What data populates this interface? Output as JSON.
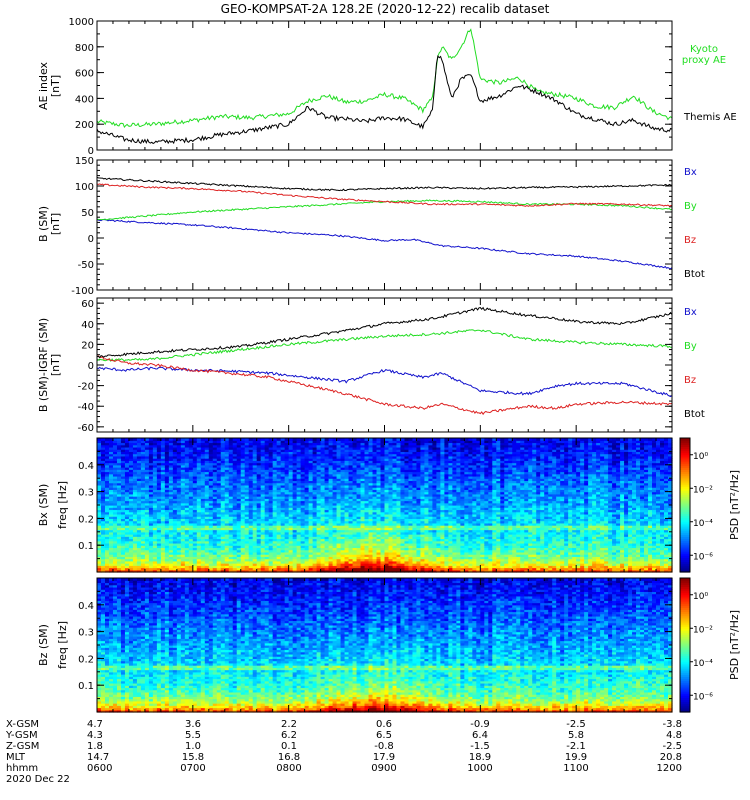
{
  "title": "GEO-KOMPSAT-2A 128.2E (2020-12-22) recalib dataset",
  "colors": {
    "black": "#000000",
    "green": "#22dd22",
    "red": "#dd2222",
    "blue": "#1111cc"
  },
  "chart_data": [
    {
      "type": "line",
      "panel": "ae",
      "ylabel": "AE index",
      "yunit": "[nT]",
      "ylim": [
        0,
        1000
      ],
      "yticks": [
        0,
        200,
        400,
        600,
        800,
        1000
      ],
      "x_range_hours": [
        6,
        12
      ],
      "series": [
        {
          "name": "Kyoto proxy AE",
          "color": "#22dd22",
          "label_lines": [
            "Kyoto",
            "proxy AE"
          ],
          "x": [
            6.0,
            6.3,
            6.6,
            7.0,
            7.3,
            7.6,
            8.0,
            8.2,
            8.4,
            8.6,
            8.8,
            9.0,
            9.2,
            9.4,
            9.5,
            9.55,
            9.6,
            9.7,
            9.8,
            9.9,
            10.0,
            10.2,
            10.4,
            10.6,
            10.8,
            11.0,
            11.2,
            11.4,
            11.6,
            11.8,
            12.0
          ],
          "y": [
            220,
            190,
            200,
            230,
            260,
            250,
            280,
            380,
            420,
            370,
            380,
            430,
            400,
            310,
            400,
            700,
            800,
            700,
            800,
            950,
            550,
            520,
            560,
            450,
            430,
            400,
            340,
            330,
            420,
            300,
            240
          ]
        },
        {
          "name": "Themis AE",
          "color": "#000000",
          "label_lines": [
            "Themis AE"
          ],
          "x": [
            6.0,
            6.3,
            6.6,
            7.0,
            7.3,
            7.6,
            8.0,
            8.2,
            8.4,
            8.6,
            8.8,
            9.0,
            9.2,
            9.4,
            9.5,
            9.55,
            9.6,
            9.7,
            9.8,
            9.9,
            10.0,
            10.2,
            10.4,
            10.6,
            10.8,
            11.0,
            11.2,
            11.4,
            11.6,
            11.8,
            12.0
          ],
          "y": [
            150,
            80,
            60,
            80,
            120,
            150,
            200,
            330,
            250,
            240,
            220,
            250,
            240,
            180,
            300,
            750,
            700,
            400,
            550,
            580,
            380,
            420,
            500,
            450,
            380,
            280,
            240,
            200,
            230,
            170,
            150
          ]
        }
      ]
    },
    {
      "type": "line",
      "panel": "b_sm",
      "ylabel": "B (SM)",
      "yunit": "[nT]",
      "ylim": [
        -100,
        150
      ],
      "yticks": [
        -100,
        -50,
        0,
        50,
        100,
        150
      ],
      "x_range_hours": [
        6,
        12
      ],
      "series": [
        {
          "name": "Bx",
          "color": "#1111cc",
          "x": [
            6.0,
            6.5,
            7.0,
            7.5,
            8.0,
            8.5,
            9.0,
            9.3,
            9.6,
            10.0,
            10.5,
            11.0,
            11.5,
            12.0
          ],
          "y": [
            35,
            30,
            25,
            18,
            10,
            5,
            -5,
            -3,
            -15,
            -20,
            -30,
            -35,
            -45,
            -58
          ]
        },
        {
          "name": "By",
          "color": "#22dd22",
          "x": [
            6.0,
            6.5,
            7.0,
            7.5,
            8.0,
            8.5,
            9.0,
            9.5,
            10.0,
            10.5,
            11.0,
            11.5,
            12.0
          ],
          "y": [
            35,
            42,
            50,
            55,
            60,
            65,
            70,
            72,
            70,
            65,
            65,
            62,
            55
          ]
        },
        {
          "name": "Bz",
          "color": "#dd2222",
          "x": [
            6.0,
            6.5,
            7.0,
            7.5,
            8.0,
            8.5,
            9.0,
            9.5,
            10.0,
            10.5,
            11.0,
            11.5,
            12.0
          ],
          "y": [
            103,
            98,
            95,
            90,
            82,
            75,
            70,
            65,
            65,
            62,
            66,
            65,
            62
          ]
        },
        {
          "name": "Btot",
          "color": "#000000",
          "x": [
            6.0,
            6.5,
            7.0,
            7.5,
            8.0,
            8.5,
            9.0,
            9.5,
            10.0,
            10.5,
            11.0,
            11.5,
            12.0
          ],
          "y": [
            115,
            110,
            105,
            100,
            95,
            92,
            95,
            97,
            95,
            97,
            98,
            100,
            102
          ]
        }
      ]
    },
    {
      "type": "line",
      "panel": "b_sm_igrf",
      "ylabel": "B (SM)-IGRF (SM)",
      "yunit": "[nT]",
      "ylim": [
        -65,
        65
      ],
      "yticks": [
        -60,
        -40,
        -20,
        0,
        20,
        40,
        60
      ],
      "x_range_hours": [
        6,
        12
      ],
      "series": [
        {
          "name": "Bx",
          "color": "#1111cc",
          "x": [
            6.0,
            6.3,
            6.6,
            7.0,
            7.4,
            7.8,
            8.2,
            8.6,
            9.0,
            9.4,
            9.6,
            10.0,
            10.5,
            10.8,
            11.0,
            11.5,
            12.0
          ],
          "y": [
            -3,
            -5,
            -3,
            -5,
            -6,
            -8,
            -12,
            -16,
            -5,
            -12,
            -8,
            -25,
            -28,
            -20,
            -18,
            -18,
            -30
          ]
        },
        {
          "name": "By",
          "color": "#22dd22",
          "x": [
            6.0,
            6.5,
            7.0,
            7.5,
            8.0,
            8.5,
            9.0,
            9.5,
            10.0,
            10.5,
            11.0,
            11.5,
            12.0
          ],
          "y": [
            5,
            5,
            10,
            15,
            20,
            24,
            28,
            30,
            34,
            25,
            22,
            20,
            18
          ]
        },
        {
          "name": "Bz",
          "color": "#dd2222",
          "x": [
            6.0,
            6.3,
            6.6,
            7.0,
            7.4,
            7.8,
            8.2,
            8.6,
            9.0,
            9.4,
            9.6,
            10.0,
            10.5,
            10.8,
            11.0,
            11.5,
            12.0
          ],
          "y": [
            8,
            2,
            0,
            -5,
            -8,
            -12,
            -20,
            -28,
            -38,
            -42,
            -38,
            -47,
            -40,
            -42,
            -38,
            -36,
            -38
          ]
        },
        {
          "name": "Btot",
          "color": "#000000",
          "x": [
            6.0,
            6.5,
            7.0,
            7.5,
            8.0,
            8.5,
            9.0,
            9.5,
            10.0,
            10.5,
            10.8,
            11.0,
            11.5,
            12.0
          ],
          "y": [
            8,
            12,
            15,
            18,
            25,
            32,
            40,
            45,
            55,
            48,
            45,
            42,
            40,
            50
          ]
        }
      ]
    },
    {
      "type": "heatmap",
      "panel": "spec_bx",
      "ylabel": "Bx (SM)",
      "yunit": "freq [Hz]",
      "ylim": [
        0,
        0.5
      ],
      "yticks": [
        0.1,
        0.2,
        0.3,
        0.4
      ],
      "x_range_hours": [
        6,
        12
      ],
      "colorbar": {
        "label": "PSD [nT²/Hz]",
        "ticks": [
          "10⁰",
          "10⁻²",
          "10⁻⁴",
          "10⁻⁶"
        ],
        "range_log10": [
          -7,
          1
        ]
      }
    },
    {
      "type": "heatmap",
      "panel": "spec_bz",
      "ylabel": "Bz (SM)",
      "yunit": "freq [Hz]",
      "ylim": [
        0,
        0.5
      ],
      "yticks": [
        0.1,
        0.2,
        0.3,
        0.4
      ],
      "x_range_hours": [
        6,
        12
      ],
      "colorbar": {
        "label": "PSD [nT²/Hz]",
        "ticks": [
          "10⁰",
          "10⁻²",
          "10⁻⁴",
          "10⁻⁶"
        ],
        "range_log10": [
          -7,
          1
        ]
      }
    }
  ],
  "footer": {
    "row_labels": [
      "X-GSM",
      "Y-GSM",
      "Z-GSM",
      "MLT",
      "hhmm"
    ],
    "date": "2020 Dec 22",
    "columns": [
      [
        "4.7",
        "4.3",
        "1.8",
        "14.7",
        "0600"
      ],
      [
        "3.6",
        "5.5",
        "1.0",
        "15.8",
        "0700"
      ],
      [
        "2.2",
        "6.2",
        "0.1",
        "16.8",
        "0800"
      ],
      [
        "0.6",
        "6.5",
        "-0.8",
        "17.9",
        "0900"
      ],
      [
        "-0.9",
        "6.4",
        "-1.5",
        "18.9",
        "1000"
      ],
      [
        "-2.5",
        "5.8",
        "-2.1",
        "19.9",
        "1100"
      ],
      [
        "-3.8",
        "4.8",
        "-2.5",
        "20.8",
        "1200"
      ]
    ]
  }
}
